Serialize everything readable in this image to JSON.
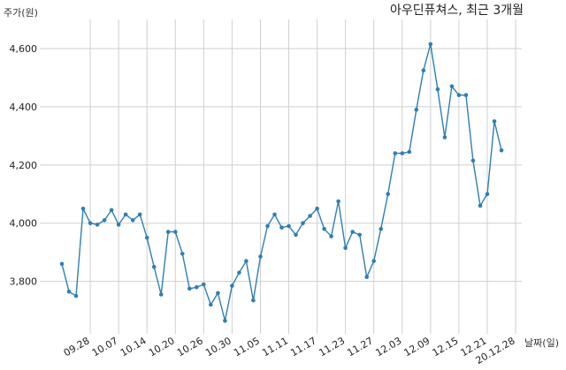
{
  "chart_data": {
    "type": "line",
    "title": "아우딘퓨쳐스, 최근 3개월",
    "xlabel": "날짜(일)",
    "ylabel": "주가(원)",
    "ylim": [
      3620,
      4700
    ],
    "yticks": [
      3800,
      4000,
      4200,
      4400,
      4600
    ],
    "ytick_labels": [
      "3,800",
      "4,000",
      "4,200",
      "4,400",
      "4,600"
    ],
    "xtick_labels": [
      "09.28",
      "10.07",
      "10.14",
      "10.20",
      "10.26",
      "10.30",
      "11.05",
      "11.11",
      "11.17",
      "11.23",
      "11.27",
      "12.03",
      "12.09",
      "12.15",
      "12.21",
      "20.12.28"
    ],
    "xtick_positions": [
      4,
      8,
      12,
      16,
      20,
      24,
      28,
      32,
      36,
      40,
      44,
      48,
      52,
      56,
      60,
      64
    ],
    "grid": true,
    "line_color": "#2f7fb3",
    "series": [
      {
        "values": [
          3860,
          3765,
          3750,
          4050,
          4000,
          3995,
          4010,
          4045,
          3995,
          4030,
          4010,
          4030,
          3950,
          3850,
          3755,
          3970,
          3970,
          3895,
          3775,
          3780,
          3790,
          3720,
          3760,
          3665,
          3785,
          3830,
          3870,
          3735,
          3885,
          3990,
          4030,
          3985,
          3990,
          3960,
          4000,
          4025,
          4050,
          3980,
          3955,
          4075,
          3915,
          3970,
          3960,
          3815,
          3870,
          3980,
          4100,
          4240,
          4240,
          4245,
          4390,
          4525,
          4615,
          4460,
          4295,
          4470,
          4440,
          4440,
          4215,
          4060,
          4100,
          4350,
          4250
        ]
      }
    ]
  }
}
